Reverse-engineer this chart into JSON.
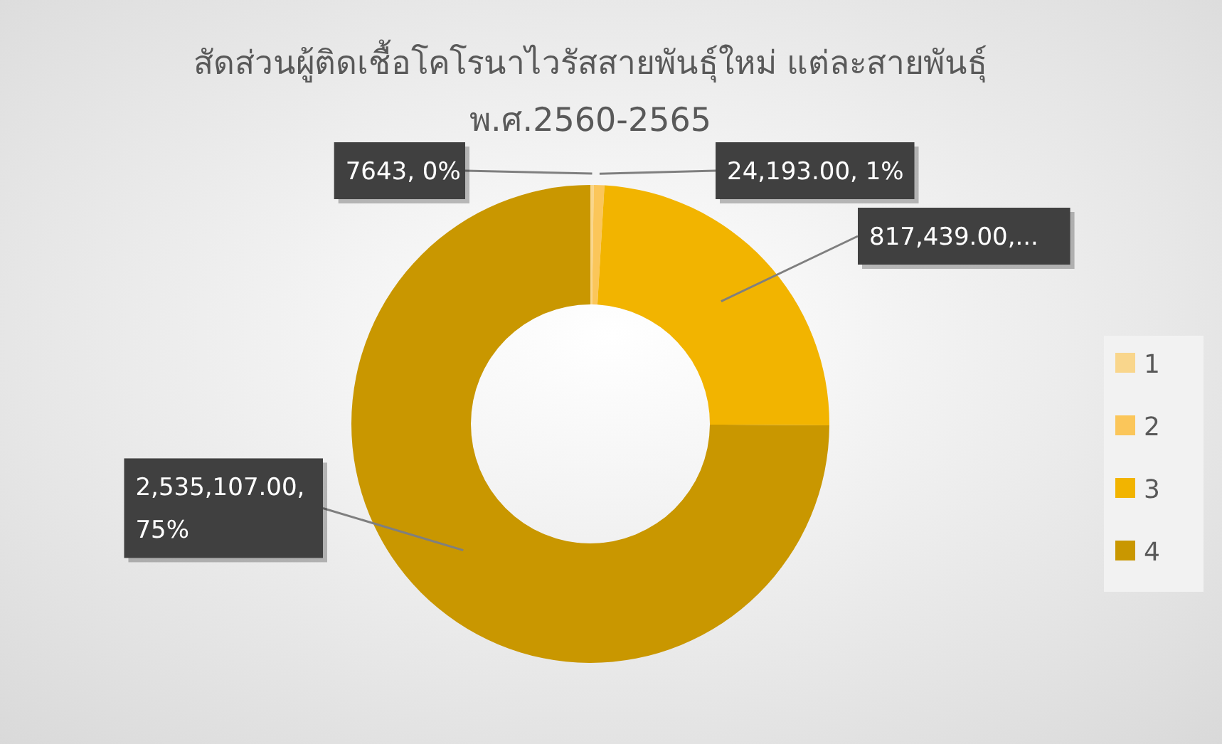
{
  "chart_data": {
    "type": "donut",
    "title": "สัดส่วนผู้ติดเชื้อโคโรนาไวรัสสายพันธุ์ใหม่ แต่ละสายพันธุ์",
    "subtitle": "พ.ศ.2560-2565",
    "categories": [
      "1",
      "2",
      "3",
      "4"
    ],
    "values": [
      7643,
      24193,
      817439,
      2535107
    ],
    "colors": [
      "#f9d68c",
      "#fbc65a",
      "#f2b400",
      "#c99700"
    ],
    "value_labels": [
      "7643, 0%",
      "24,193.00, 1%",
      "817,439.00,...",
      "2,535,107.00, 75%"
    ],
    "legend": "right"
  }
}
